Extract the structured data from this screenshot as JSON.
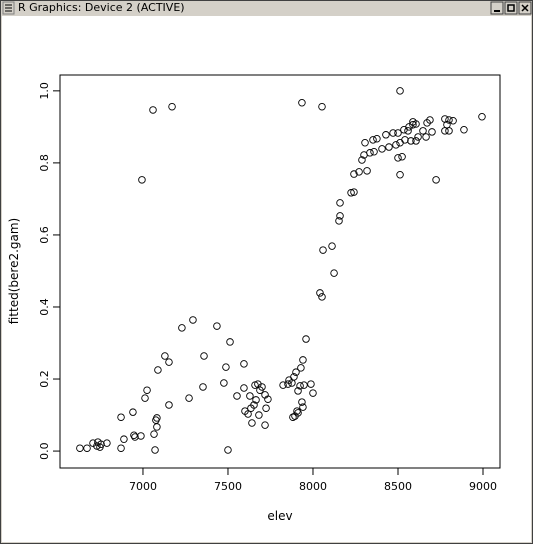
{
  "window_title": "R Graphics: Device 2 (ACTIVE)",
  "chart_data": {
    "type": "scatter",
    "xlabel": "elev",
    "ylabel": "fitted(bere2.gam)",
    "xlim": [
      6512,
      9100
    ],
    "ylim": [
      -0.047,
      1.044
    ],
    "xticks": [
      7000,
      7500,
      8000,
      8500,
      9000
    ],
    "yticks": [
      {
        "value": 0,
        "label": "0.0"
      },
      {
        "value": 0.2,
        "label": "0.2"
      },
      {
        "value": 0.4,
        "label": "0.4"
      },
      {
        "value": 0.6,
        "label": "0.6"
      },
      {
        "value": 0.8,
        "label": "0.8"
      },
      {
        "value": 1,
        "label": "1.0"
      }
    ],
    "color": "#000000",
    "x": [
      6629,
      6671,
      6706,
      6729,
      6735,
      6747,
      6753,
      6788,
      6871,
      6871,
      6888,
      6947,
      6953,
      6941,
      6988,
      6994,
      7012,
      7024,
      7059,
      7065,
      7071,
      7076,
      7082,
      7082,
      7088,
      7129,
      7153,
      7153,
      7171,
      7229,
      7271,
      7294,
      7353,
      7359,
      7435,
      7476,
      7488,
      7500,
      7512,
      7553,
      7594,
      7594,
      7600,
      7618,
      7629,
      7641,
      7635,
      7653,
      7659,
      7665,
      7676,
      7682,
      7688,
      7700,
      7718,
      7718,
      7724,
      7735,
      7824,
      7853,
      7859,
      7876,
      7888,
      7882,
      7894,
      7906,
      7900,
      7912,
      7912,
      7924,
      7935,
      7929,
      7941,
      7941,
      7947,
      7959,
      7988,
      8000,
      7935,
      8041,
      8053,
      8059,
      8112,
      8124,
      8153,
      8159,
      8159,
      8224,
      8241,
      8241,
      8271,
      8288,
      8306,
      8300,
      8318,
      8335,
      8359,
      8353,
      8376,
      8406,
      8429,
      8447,
      8471,
      8488,
      8500,
      8500,
      8512,
      8512,
      8512,
      8524,
      8535,
      8541,
      8559,
      8565,
      8576,
      8588,
      8588,
      8606,
      8606,
      8618,
      8647,
      8671,
      8665,
      8688,
      8700,
      8724,
      8776,
      8788,
      8800,
      8824,
      8776,
      8800,
      8888,
      8994,
      8053
    ],
    "y": [
      0.008,
      0.008,
      0.022,
      0.014,
      0.025,
      0.011,
      0.019,
      0.022,
      0.008,
      0.094,
      0.033,
      0.044,
      0.039,
      0.108,
      0.042,
      0.753,
      0.147,
      0.169,
      0.947,
      0.047,
      0.003,
      0.086,
      0.067,
      0.092,
      0.225,
      0.264,
      0.247,
      0.128,
      0.956,
      0.342,
      0.147,
      0.364,
      0.178,
      0.264,
      0.347,
      0.189,
      0.233,
      0.003,
      0.303,
      0.153,
      0.242,
      0.175,
      0.111,
      0.103,
      0.153,
      0.078,
      0.119,
      0.128,
      0.183,
      0.142,
      0.186,
      0.1,
      0.169,
      0.178,
      0.156,
      0.072,
      0.119,
      0.144,
      0.183,
      0.186,
      0.197,
      0.189,
      0.206,
      0.094,
      0.097,
      0.111,
      0.219,
      0.167,
      0.106,
      0.181,
      0.136,
      0.231,
      0.122,
      0.253,
      0.183,
      0.311,
      0.186,
      0.161,
      0.967,
      0.439,
      0.428,
      0.558,
      0.569,
      0.494,
      0.639,
      0.653,
      0.689,
      0.717,
      0.769,
      0.719,
      0.775,
      0.808,
      0.856,
      0.822,
      0.778,
      0.828,
      0.831,
      0.864,
      0.867,
      0.839,
      0.878,
      0.844,
      0.883,
      0.85,
      0.883,
      0.814,
      1.0,
      0.856,
      0.767,
      0.817,
      0.892,
      0.864,
      0.889,
      0.9,
      0.861,
      0.914,
      0.906,
      0.908,
      0.861,
      0.872,
      0.889,
      0.911,
      0.872,
      0.919,
      0.886,
      0.753,
      0.922,
      0.906,
      0.919,
      0.917,
      0.889,
      0.889,
      0.892,
      0.928,
      0.956
    ]
  }
}
